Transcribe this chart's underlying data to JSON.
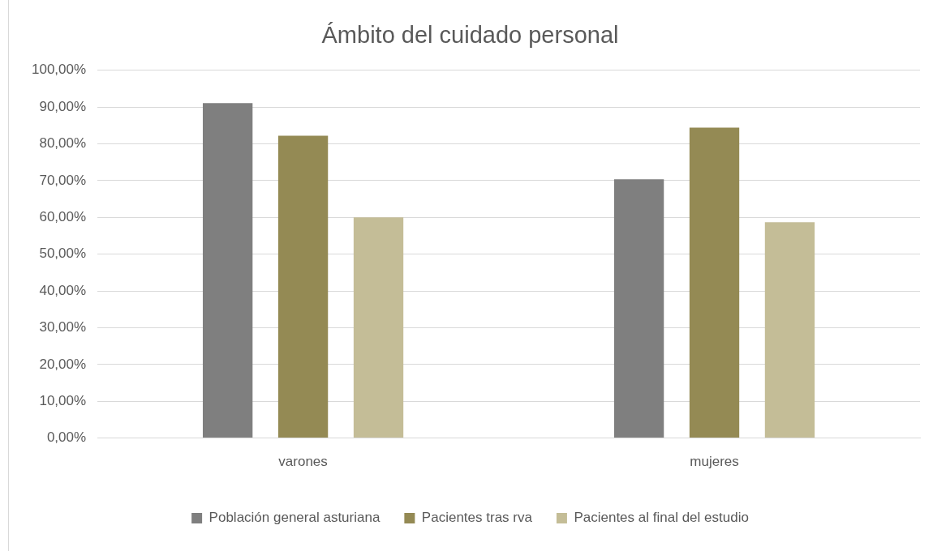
{
  "chart_data": {
    "type": "bar",
    "title": "Ámbito del cuidado personal",
    "categories": [
      "varones",
      "mujeres"
    ],
    "series": [
      {
        "name": "Población general asturiana",
        "color": "#7f7f7f",
        "values": [
          91.1,
          70.4
        ]
      },
      {
        "name": "Pacientes tras rva",
        "color": "#948a54",
        "values": [
          82.2,
          84.4
        ]
      },
      {
        "name": "Pacientes al final del estudio",
        "color": "#c4bd97",
        "values": [
          60.0,
          58.7
        ]
      }
    ],
    "ylim": [
      0,
      100
    ],
    "yticks": [
      {
        "value": 0,
        "label": "0,00%"
      },
      {
        "value": 10,
        "label": "10,00%"
      },
      {
        "value": 20,
        "label": "20,00%"
      },
      {
        "value": 30,
        "label": "30,00%"
      },
      {
        "value": 40,
        "label": "40,00%"
      },
      {
        "value": 50,
        "label": "50,00%"
      },
      {
        "value": 60,
        "label": "60,00%"
      },
      {
        "value": 70,
        "label": "70,00%"
      },
      {
        "value": 80,
        "label": "80,00%"
      },
      {
        "value": 90,
        "label": "90,00%"
      },
      {
        "value": 100,
        "label": "100,00%"
      }
    ],
    "grid": "y",
    "legend": "bottom"
  }
}
